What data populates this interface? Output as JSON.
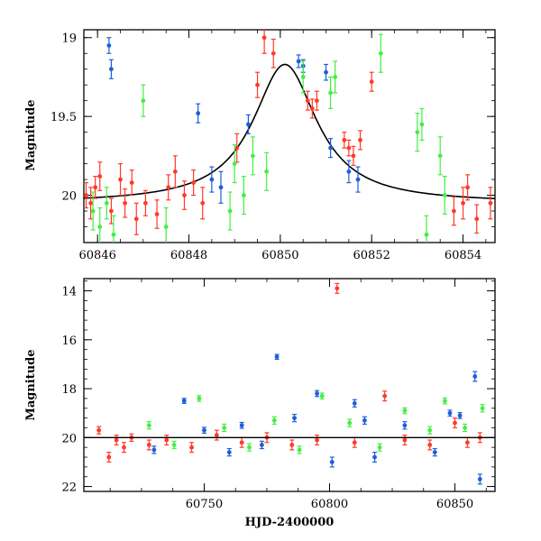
{
  "chart_data": [
    {
      "type": "scatter",
      "panel": "top",
      "title": "",
      "xlabel": "",
      "ylabel": "Magnitude",
      "xlim": [
        60845.7,
        60854.7
      ],
      "ylim": [
        20.3,
        18.95
      ],
      "y_inverted": true,
      "x_ticks": [
        60846,
        60848,
        60850,
        60852,
        60854
      ],
      "x_tick_labels": [
        "60846",
        "60848",
        "60850",
        "60852",
        "60854"
      ],
      "y_ticks": [
        19,
        19.5,
        20
      ],
      "y_tick_labels": [
        "19",
        "19.5",
        "20"
      ],
      "grid": false,
      "legend": "none",
      "model_curve": {
        "name": "",
        "color": "#000000",
        "peak_x": 60850.1,
        "peak_mag": 19.17,
        "baseline_mag": 20.05,
        "width_days": 0.85
      },
      "series": [
        {
          "color": "#ff3a2a",
          "points": [
            {
              "x": 60845.75,
              "y": 20.0,
              "err": 0.08
            },
            {
              "x": 60845.85,
              "y": 20.05,
              "err": 0.1
            },
            {
              "x": 60845.95,
              "y": 19.95,
              "err": 0.07
            },
            {
              "x": 60846.05,
              "y": 19.88,
              "err": 0.09
            },
            {
              "x": 60846.3,
              "y": 20.1,
              "err": 0.08
            },
            {
              "x": 60846.5,
              "y": 19.9,
              "err": 0.1
            },
            {
              "x": 60846.6,
              "y": 20.05,
              "err": 0.09
            },
            {
              "x": 60846.75,
              "y": 19.92,
              "err": 0.08
            },
            {
              "x": 60846.85,
              "y": 20.15,
              "err": 0.1
            },
            {
              "x": 60847.05,
              "y": 20.05,
              "err": 0.08
            },
            {
              "x": 60847.3,
              "y": 20.12,
              "err": 0.09
            },
            {
              "x": 60847.55,
              "y": 19.95,
              "err": 0.08
            },
            {
              "x": 60847.7,
              "y": 19.85,
              "err": 0.1
            },
            {
              "x": 60847.9,
              "y": 20.0,
              "err": 0.09
            },
            {
              "x": 60848.1,
              "y": 19.92,
              "err": 0.08
            },
            {
              "x": 60848.3,
              "y": 20.05,
              "err": 0.1
            },
            {
              "x": 60849.05,
              "y": 19.7,
              "err": 0.09
            },
            {
              "x": 60849.5,
              "y": 19.3,
              "err": 0.08
            },
            {
              "x": 60849.65,
              "y": 19.0,
              "err": 0.1
            },
            {
              "x": 60849.85,
              "y": 19.1,
              "err": 0.09
            },
            {
              "x": 60850.6,
              "y": 19.4,
              "err": 0.06
            },
            {
              "x": 60850.7,
              "y": 19.45,
              "err": 0.06
            },
            {
              "x": 60850.8,
              "y": 19.4,
              "err": 0.06
            },
            {
              "x": 60851.4,
              "y": 19.65,
              "err": 0.05
            },
            {
              "x": 60851.5,
              "y": 19.7,
              "err": 0.05
            },
            {
              "x": 60851.6,
              "y": 19.75,
              "err": 0.06
            },
            {
              "x": 60851.75,
              "y": 19.65,
              "err": 0.06
            },
            {
              "x": 60852.0,
              "y": 19.28,
              "err": 0.06
            },
            {
              "x": 60853.8,
              "y": 20.1,
              "err": 0.09
            },
            {
              "x": 60854.0,
              "y": 20.05,
              "err": 0.1
            },
            {
              "x": 60854.1,
              "y": 19.95,
              "err": 0.08
            },
            {
              "x": 60854.3,
              "y": 20.15,
              "err": 0.09
            },
            {
              "x": 60854.6,
              "y": 20.05,
              "err": 0.1
            }
          ]
        },
        {
          "color": "#1e5ed8",
          "points": [
            {
              "x": 60846.25,
              "y": 19.05,
              "err": 0.05
            },
            {
              "x": 60846.3,
              "y": 19.2,
              "err": 0.06
            },
            {
              "x": 60848.2,
              "y": 19.48,
              "err": 0.06
            },
            {
              "x": 60848.5,
              "y": 19.9,
              "err": 0.08
            },
            {
              "x": 60848.7,
              "y": 19.95,
              "err": 0.1
            },
            {
              "x": 60849.3,
              "y": 19.55,
              "err": 0.06
            },
            {
              "x": 60850.4,
              "y": 19.15,
              "err": 0.04
            },
            {
              "x": 60850.5,
              "y": 19.18,
              "err": 0.04
            },
            {
              "x": 60851.0,
              "y": 19.22,
              "err": 0.05
            },
            {
              "x": 60851.1,
              "y": 19.7,
              "err": 0.06
            },
            {
              "x": 60851.5,
              "y": 19.85,
              "err": 0.07
            },
            {
              "x": 60851.7,
              "y": 19.9,
              "err": 0.08
            }
          ]
        },
        {
          "color": "#44ee44",
          "points": [
            {
              "x": 60845.9,
              "y": 20.1,
              "err": 0.12
            },
            {
              "x": 60846.05,
              "y": 20.2,
              "err": 0.12
            },
            {
              "x": 60846.2,
              "y": 20.05,
              "err": 0.1
            },
            {
              "x": 60846.35,
              "y": 20.25,
              "err": 0.12
            },
            {
              "x": 60847.0,
              "y": 19.4,
              "err": 0.1
            },
            {
              "x": 60847.5,
              "y": 20.2,
              "err": 0.12
            },
            {
              "x": 60848.9,
              "y": 20.1,
              "err": 0.12
            },
            {
              "x": 60849.0,
              "y": 19.8,
              "err": 0.12
            },
            {
              "x": 60849.2,
              "y": 20.0,
              "err": 0.12
            },
            {
              "x": 60849.4,
              "y": 19.75,
              "err": 0.12
            },
            {
              "x": 60849.7,
              "y": 19.85,
              "err": 0.12
            },
            {
              "x": 60850.5,
              "y": 19.25,
              "err": 0.1
            },
            {
              "x": 60851.1,
              "y": 19.35,
              "err": 0.1
            },
            {
              "x": 60851.2,
              "y": 19.25,
              "err": 0.1
            },
            {
              "x": 60852.2,
              "y": 19.1,
              "err": 0.12
            },
            {
              "x": 60853.0,
              "y": 19.6,
              "err": 0.12
            },
            {
              "x": 60853.1,
              "y": 19.55,
              "err": 0.1
            },
            {
              "x": 60853.2,
              "y": 20.25,
              "err": 0.12
            },
            {
              "x": 60853.5,
              "y": 19.75,
              "err": 0.12
            },
            {
              "x": 60853.6,
              "y": 20.0,
              "err": 0.12
            }
          ]
        }
      ]
    },
    {
      "type": "scatter",
      "panel": "bottom",
      "title": "",
      "xlabel": "HJD-2400000",
      "ylabel": "Magnitude",
      "xlim": [
        60702,
        60866
      ],
      "ylim": [
        22.2,
        13.5
      ],
      "y_inverted": true,
      "x_ticks": [
        60750,
        60800,
        60850
      ],
      "x_tick_labels": [
        "60750",
        "60800",
        "60850"
      ],
      "y_ticks": [
        14,
        16,
        18,
        20,
        22
      ],
      "y_tick_labels": [
        "14",
        "16",
        "18",
        "20",
        "22"
      ],
      "grid": false,
      "legend": "none",
      "baseline_mag": 20.0,
      "series": [
        {
          "color": "#ff3a2a",
          "points": [
            {
              "x": 60708,
              "y": 19.7,
              "err": 0.15
            },
            {
              "x": 60712,
              "y": 20.8,
              "err": 0.2
            },
            {
              "x": 60715,
              "y": 20.1,
              "err": 0.2
            },
            {
              "x": 60718,
              "y": 20.4,
              "err": 0.2
            },
            {
              "x": 60721,
              "y": 20.0,
              "err": 0.15
            },
            {
              "x": 60728,
              "y": 20.3,
              "err": 0.2
            },
            {
              "x": 60735,
              "y": 20.1,
              "err": 0.2
            },
            {
              "x": 60745,
              "y": 20.4,
              "err": 0.2
            },
            {
              "x": 60755,
              "y": 19.9,
              "err": 0.2
            },
            {
              "x": 60765,
              "y": 20.2,
              "err": 0.2
            },
            {
              "x": 60775,
              "y": 20.0,
              "err": 0.2
            },
            {
              "x": 60785,
              "y": 20.3,
              "err": 0.2
            },
            {
              "x": 60795,
              "y": 20.1,
              "err": 0.2
            },
            {
              "x": 60803,
              "y": 13.9,
              "err": 0.2
            },
            {
              "x": 60810,
              "y": 20.2,
              "err": 0.2
            },
            {
              "x": 60822,
              "y": 18.3,
              "err": 0.2
            },
            {
              "x": 60830,
              "y": 20.1,
              "err": 0.2
            },
            {
              "x": 60840,
              "y": 20.3,
              "err": 0.2
            },
            {
              "x": 60850,
              "y": 19.4,
              "err": 0.2
            },
            {
              "x": 60855,
              "y": 20.2,
              "err": 0.2
            },
            {
              "x": 60860,
              "y": 20.0,
              "err": 0.2
            }
          ]
        },
        {
          "color": "#1e5ed8",
          "points": [
            {
              "x": 60730,
              "y": 20.5,
              "err": 0.15
            },
            {
              "x": 60742,
              "y": 18.5,
              "err": 0.1
            },
            {
              "x": 60750,
              "y": 19.7,
              "err": 0.12
            },
            {
              "x": 60760,
              "y": 20.6,
              "err": 0.15
            },
            {
              "x": 60765,
              "y": 19.5,
              "err": 0.12
            },
            {
              "x": 60773,
              "y": 20.3,
              "err": 0.15
            },
            {
              "x": 60779,
              "y": 16.7,
              "err": 0.1
            },
            {
              "x": 60786,
              "y": 19.2,
              "err": 0.15
            },
            {
              "x": 60795,
              "y": 18.2,
              "err": 0.12
            },
            {
              "x": 60801,
              "y": 21.0,
              "err": 0.2
            },
            {
              "x": 60810,
              "y": 18.6,
              "err": 0.15
            },
            {
              "x": 60814,
              "y": 19.3,
              "err": 0.15
            },
            {
              "x": 60818,
              "y": 20.8,
              "err": 0.2
            },
            {
              "x": 60830,
              "y": 19.5,
              "err": 0.15
            },
            {
              "x": 60842,
              "y": 20.6,
              "err": 0.15
            },
            {
              "x": 60848,
              "y": 19.0,
              "err": 0.12
            },
            {
              "x": 60852,
              "y": 19.1,
              "err": 0.12
            },
            {
              "x": 60858,
              "y": 17.5,
              "err": 0.2
            },
            {
              "x": 60860,
              "y": 21.7,
              "err": 0.2
            }
          ]
        },
        {
          "color": "#44ee44",
          "points": [
            {
              "x": 60728,
              "y": 19.5,
              "err": 0.15
            },
            {
              "x": 60738,
              "y": 20.3,
              "err": 0.15
            },
            {
              "x": 60748,
              "y": 18.4,
              "err": 0.12
            },
            {
              "x": 60758,
              "y": 19.6,
              "err": 0.15
            },
            {
              "x": 60768,
              "y": 20.4,
              "err": 0.15
            },
            {
              "x": 60778,
              "y": 19.3,
              "err": 0.15
            },
            {
              "x": 60788,
              "y": 20.5,
              "err": 0.15
            },
            {
              "x": 60797,
              "y": 18.3,
              "err": 0.12
            },
            {
              "x": 60808,
              "y": 19.4,
              "err": 0.15
            },
            {
              "x": 60820,
              "y": 20.4,
              "err": 0.15
            },
            {
              "x": 60830,
              "y": 18.9,
              "err": 0.12
            },
            {
              "x": 60840,
              "y": 19.7,
              "err": 0.15
            },
            {
              "x": 60846,
              "y": 18.5,
              "err": 0.12
            },
            {
              "x": 60854,
              "y": 19.6,
              "err": 0.15
            },
            {
              "x": 60861,
              "y": 18.8,
              "err": 0.15
            }
          ]
        }
      ]
    }
  ]
}
